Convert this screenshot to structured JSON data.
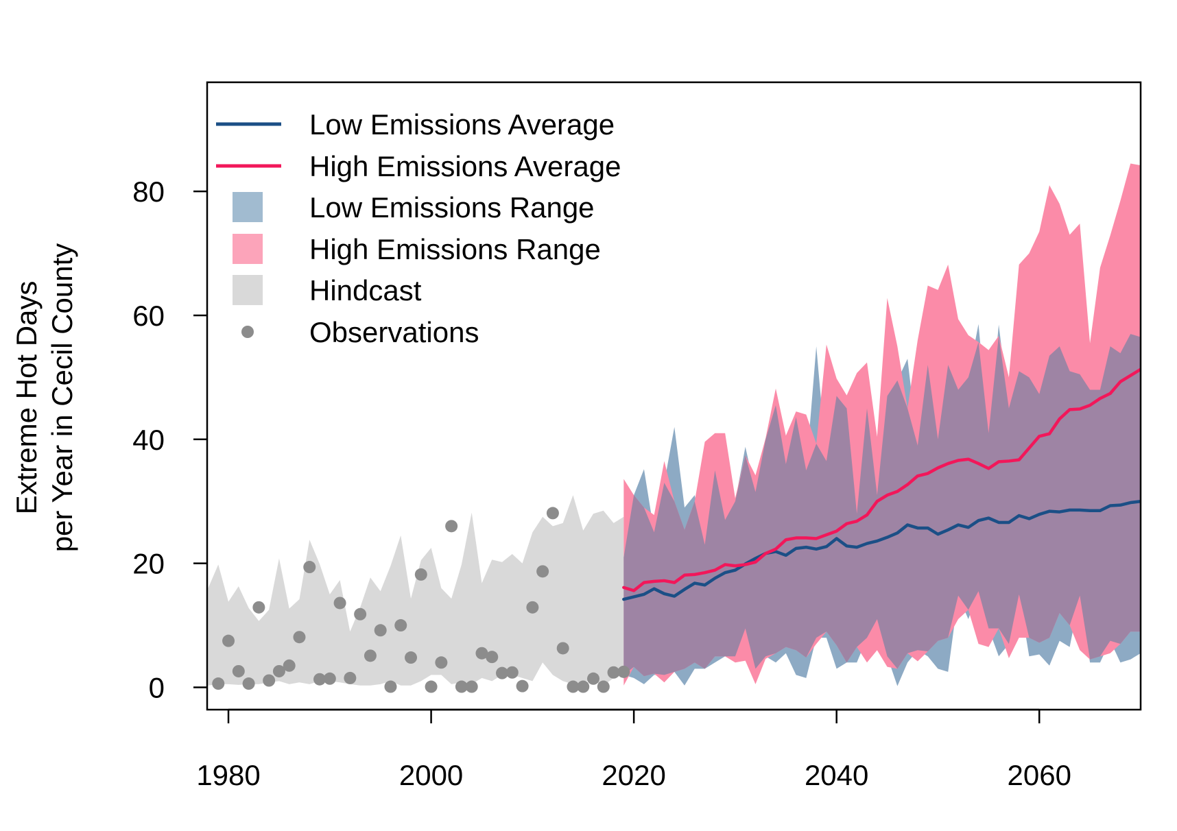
{
  "chart_data": {
    "type": "line",
    "title": "",
    "xlabel": "",
    "ylabel": [
      "Extreme Hot Days",
      "per Year in Cecil County"
    ],
    "xlim": [
      1977.9,
      2070
    ],
    "ylim": [
      -3.6,
      97.6
    ],
    "x_ticks": [
      1980,
      2000,
      2020,
      2040,
      2060
    ],
    "x_tick_labels": [
      "1980",
      "2000",
      "2020",
      "2040",
      "2060"
    ],
    "y_ticks": [
      0,
      20,
      40,
      60,
      80
    ],
    "y_tick_labels": [
      "0",
      "20",
      "40",
      "60",
      "80"
    ],
    "grid": false,
    "legend_position": "top-left",
    "legend": [
      {
        "label": "Low Emissions Average",
        "kind": "line",
        "color": "#1B4F86"
      },
      {
        "label": "High Emissions Average",
        "kind": "line",
        "color": "#F2175A"
      },
      {
        "label": "Low Emissions Range",
        "kind": "fill",
        "color": "#A1BBD0"
      },
      {
        "label": "High Emissions Range",
        "kind": "fill",
        "color": "#FCA4BA"
      },
      {
        "label": "Hindcast",
        "kind": "fill",
        "color": "#D9D9D9"
      },
      {
        "label": "Observations",
        "kind": "point",
        "color": "#8C8C8C"
      }
    ],
    "colors": {
      "low_line": "#1B4F86",
      "high_line": "#F2175A",
      "low_range": "#8DAAC4",
      "high_range": "#FB8BA8",
      "overlap": "#9E84A4",
      "hindcast": "#D9D9D9",
      "observations": "#8C8C8C"
    },
    "hindcast": {
      "x": [
        1978,
        1979,
        1980,
        1981,
        1982,
        1983,
        1984,
        1985,
        1986,
        1987,
        1988,
        1989,
        1990,
        1991,
        1992,
        1993,
        1994,
        1995,
        1996,
        1997,
        1998,
        1999,
        2000,
        2001,
        2002,
        2003,
        2004,
        2005,
        2006,
        2007,
        2008,
        2009,
        2010,
        2011,
        2012,
        2013,
        2014,
        2015,
        2016,
        2017,
        2018,
        2019
      ],
      "upper": [
        16,
        19.8,
        13.8,
        16.3,
        12.8,
        10.7,
        12.5,
        20.8,
        12.7,
        14.2,
        23.8,
        19.9,
        15.0,
        17.3,
        9.0,
        12.9,
        17.7,
        15.5,
        19.6,
        24.5,
        14.3,
        20.5,
        22.5,
        16.0,
        14.3,
        19.8,
        28.2,
        16.8,
        20.6,
        20.2,
        21.5,
        20.0,
        25.0,
        27.5,
        26.0,
        26.5,
        31.0,
        25.3,
        28.0,
        28.5,
        26.5,
        27.5
      ],
      "lower": [
        0.3,
        0.5,
        0.5,
        0.4,
        0.5,
        0.5,
        0.8,
        1.0,
        0.5,
        0.8,
        0.5,
        1.0,
        1.0,
        0.8,
        0.5,
        0.3,
        0.3,
        0.5,
        1.0,
        0.3,
        0.3,
        1.0,
        2.0,
        2.0,
        0.5,
        0.8,
        0.5,
        1.5,
        1.0,
        2.0,
        2.0,
        1.5,
        1.0,
        4.0,
        2.0,
        1.0,
        0.5,
        1.0,
        1.0,
        0.3,
        1.5,
        2.0
      ]
    },
    "observations": {
      "x": [
        1979,
        1980,
        1981,
        1982,
        1983,
        1984,
        1985,
        1986,
        1987,
        1988,
        1989,
        1990,
        1991,
        1992,
        1993,
        1994,
        1995,
        1996,
        1997,
        1998,
        1999,
        2000,
        2001,
        2002,
        2003,
        2004,
        2005,
        2006,
        2007,
        2008,
        2009,
        2010,
        2011,
        2012,
        2013,
        2014,
        2015,
        2016,
        2017,
        2018,
        2019
      ],
      "y": [
        0.6,
        7.5,
        2.6,
        0.6,
        12.9,
        1.1,
        2.6,
        3.5,
        8.1,
        19.4,
        1.3,
        1.4,
        13.6,
        1.5,
        11.8,
        5.1,
        9.2,
        0.1,
        10.0,
        4.8,
        18.2,
        0.1,
        4.0,
        26.0,
        0.1,
        0.1,
        5.5,
        4.9,
        2.3,
        2.4,
        0.2,
        12.9,
        18.7,
        28.1,
        6.3,
        0.1,
        0.1,
        1.4,
        0.1,
        2.4,
        2.5
      ]
    },
    "projection_x": [
      2019,
      2020,
      2021,
      2022,
      2023,
      2024,
      2025,
      2026,
      2027,
      2028,
      2029,
      2030,
      2031,
      2032,
      2033,
      2034,
      2035,
      2036,
      2037,
      2038,
      2039,
      2040,
      2041,
      2042,
      2043,
      2044,
      2045,
      2046,
      2047,
      2048,
      2049,
      2050,
      2051,
      2052,
      2053,
      2054,
      2055,
      2056,
      2057,
      2058,
      2059,
      2060,
      2061,
      2062,
      2063,
      2064,
      2065,
      2066,
      2067,
      2068,
      2069,
      2070
    ],
    "low_range": {
      "upper": [
        21,
        31,
        35.2,
        25,
        33,
        42,
        29,
        31,
        23,
        35,
        27,
        30,
        38.8,
        31.5,
        40,
        45.5,
        36,
        43.6,
        35,
        55,
        36.5,
        47,
        45,
        28,
        45,
        31,
        47,
        49.5,
        53,
        39,
        52,
        40,
        52,
        48,
        50,
        58.6,
        41,
        58.5,
        45,
        51,
        50,
        47.3,
        53.5,
        55,
        51,
        50.5,
        48,
        48,
        55,
        53.9,
        57,
        56.5
      ],
      "lower": [
        2,
        1.5,
        0.5,
        2,
        2,
        2.5,
        0.3,
        3,
        3,
        4,
        5,
        5,
        9.5,
        3,
        5,
        4,
        5.5,
        2,
        1.5,
        8,
        8,
        3,
        4,
        4,
        8,
        11,
        5,
        0.2,
        4,
        6,
        5,
        3,
        2.5,
        14.8,
        11,
        15.5,
        9.5,
        5,
        7,
        15,
        5,
        5.3,
        3.5,
        7.5,
        6.5,
        14.8,
        4,
        4,
        7.5,
        4,
        4.5,
        5.5
      ]
    },
    "high_range": {
      "upper": [
        33.6,
        31,
        29,
        27.8,
        36.5,
        30,
        25.4,
        30,
        39.6,
        41,
        41,
        30.5,
        37.4,
        34.2,
        40.2,
        48.2,
        40.6,
        44.5,
        44,
        39.3,
        55.3,
        49.8,
        47.1,
        50.7,
        52.4,
        40.4,
        62.8,
        55,
        45,
        56,
        64.8,
        64.1,
        68.2,
        59.4,
        56.8,
        55.7,
        54.4,
        56.7,
        50,
        68.2,
        70,
        73.5,
        81,
        78,
        73,
        74.8,
        55.5,
        67.7,
        72.9,
        78.5,
        84.5,
        84.2
      ],
      "lower": [
        0.3,
        3.3,
        1.8,
        2.2,
        0.8,
        2.5,
        3,
        4,
        3,
        5,
        5,
        4,
        4.3,
        0.5,
        4.6,
        5.5,
        6.5,
        6,
        4.8,
        7,
        9,
        6.8,
        4,
        6.5,
        4,
        6,
        3.3,
        3,
        5.5,
        4.2,
        5.8,
        7.5,
        8,
        11,
        12.5,
        7,
        6.5,
        9.5,
        4.7,
        8,
        8,
        7.2,
        8,
        12,
        10,
        6,
        4.5,
        5,
        5.5,
        7,
        9,
        9
      ]
    },
    "series": [
      {
        "name": "Low Emissions Average",
        "values": [
          14.2,
          14.6,
          15,
          15.9,
          15.1,
          14.7,
          15.8,
          16.8,
          16.5,
          17.6,
          18.5,
          18.9,
          19.9,
          20.8,
          21.6,
          21.9,
          21.3,
          22.4,
          22.6,
          22.3,
          22.7,
          24.0,
          22.8,
          22.6,
          23.2,
          23.6,
          24.2,
          24.9,
          26.2,
          25.7,
          25.7,
          24.7,
          25.4,
          26.2,
          25.8,
          26.9,
          27.3,
          26.6,
          26.6,
          27.7,
          27.2,
          27.9,
          28.4,
          28.3,
          28.6,
          28.6,
          28.5,
          28.5,
          29.3,
          29.4,
          29.8,
          30.0
        ]
      },
      {
        "name": "High Emissions Average",
        "values": [
          16.1,
          15.6,
          16.9,
          17.1,
          17.2,
          16.9,
          18.1,
          18.2,
          18.5,
          18.9,
          19.8,
          19.6,
          19.8,
          20.2,
          21.6,
          22.3,
          23.8,
          24.1,
          24.1,
          24.0,
          24.6,
          25.2,
          26.4,
          26.8,
          27.8,
          30.0,
          31.0,
          31.6,
          32.7,
          34.1,
          34.5,
          35.4,
          36.1,
          36.6,
          36.8,
          36.1,
          35.3,
          36.4,
          36.5,
          36.7,
          38.6,
          40.5,
          40.9,
          43.3,
          44.8,
          44.9,
          45.5,
          46.6,
          47.4,
          49.3,
          50.3,
          51.3
        ]
      }
    ]
  }
}
